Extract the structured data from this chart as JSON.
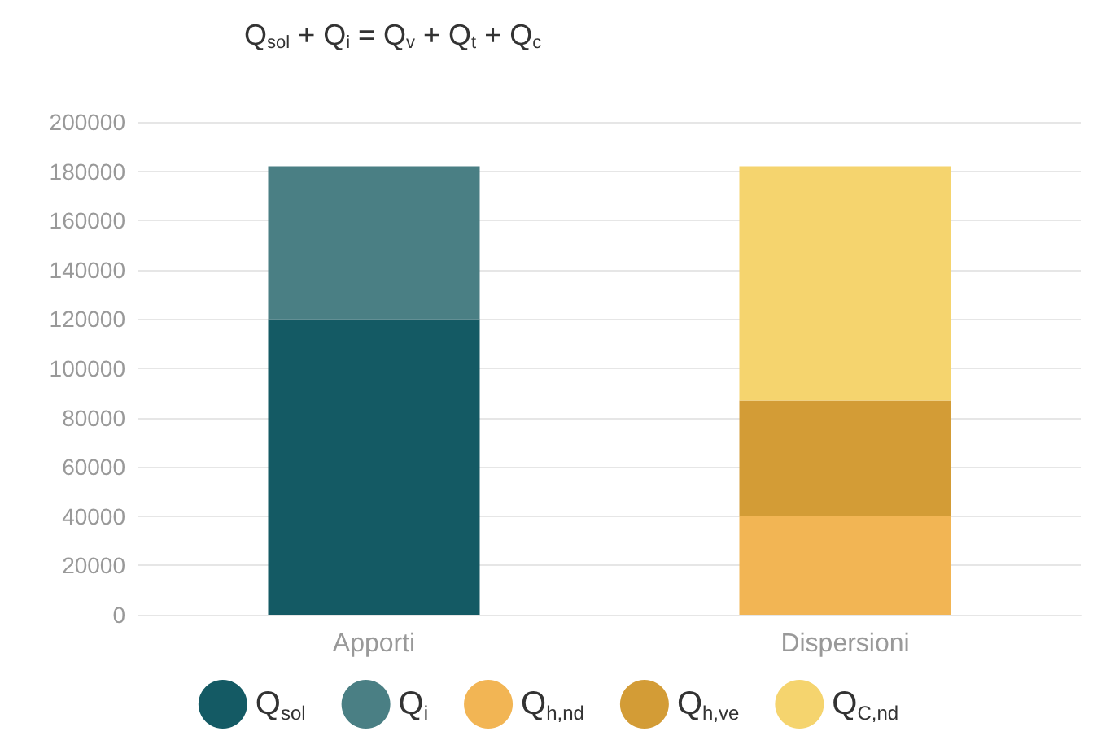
{
  "chart_data": {
    "type": "bar",
    "title": "Q$_{sol}$ + Q$_{i}$ = Q$_{v}$ + Q$_{t}$ + Q$_{c}$",
    "categories": [
      "Apporti",
      "Dispersioni"
    ],
    "stacked": true,
    "series": [
      {
        "name": "Q$_{sol}$",
        "color": "#145a64",
        "values": [
          120000,
          null
        ]
      },
      {
        "name": "Q$_{i}$",
        "color": "#4a7f84",
        "values": [
          62000,
          null
        ]
      },
      {
        "name": "Q$_{h,nd}$",
        "color": "#f2b554",
        "values": [
          null,
          40000
        ]
      },
      {
        "name": "Q$_{h,ve}$",
        "color": "#d39c36",
        "values": [
          null,
          47000
        ]
      },
      {
        "name": "Q$_{C,nd}$",
        "color": "#f5d46e",
        "values": [
          null,
          95000
        ]
      }
    ],
    "ylim": [
      0,
      200000
    ],
    "yticks": [
      0,
      20000,
      40000,
      60000,
      80000,
      100000,
      120000,
      140000,
      160000,
      180000,
      200000
    ],
    "grid": "y",
    "legend": "bottom"
  }
}
